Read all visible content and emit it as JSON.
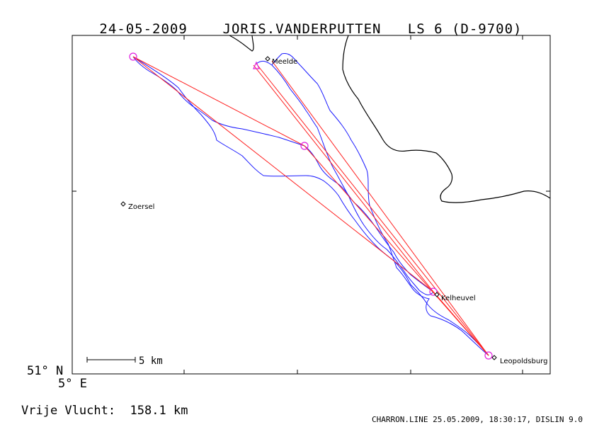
{
  "header": {
    "date": "24-05-2009",
    "pilot": "JORIS.VANDERPUTTEN",
    "glider": "LS 6 (D-9700)"
  },
  "map": {
    "places": [
      {
        "name": "Meelde"
      },
      {
        "name": "Zoersel"
      },
      {
        "name": "Kelheuvel"
      },
      {
        "name": "Leopoldsburg"
      }
    ],
    "lat_label": "51° N",
    "lon_label": "5° E",
    "scale_label": "5 km",
    "colors": {
      "track": "#1a1aff",
      "task": "#ff2020",
      "turnpoint": "#e020e0",
      "border": "#000000"
    }
  },
  "free_flight_label": "Vrije Vlucht:",
  "free_flight_value": "158.1 km",
  "footer": "CHARRON.LINE 25.05.2009, 18:30:17, DISLIN 9.0"
}
